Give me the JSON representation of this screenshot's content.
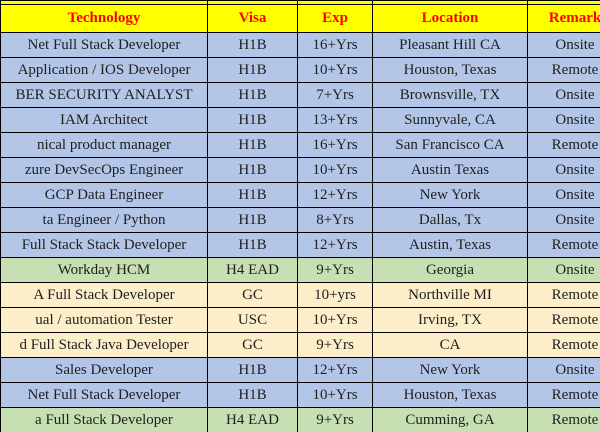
{
  "table": {
    "columns": [
      "Technology",
      "Visa",
      "Exp",
      "Location",
      "Remark"
    ],
    "rows": [
      {
        "technology": "Net Full Stack Developer",
        "visa": "H1B",
        "exp": "16+Yrs",
        "location": "Pleasant Hill CA",
        "remark": "Onsite",
        "theme": "blue"
      },
      {
        "technology": "Application / IOS Developer",
        "visa": "H1B",
        "exp": "10+Yrs",
        "location": "Houston, Texas",
        "remark": "Remote",
        "theme": "blue"
      },
      {
        "technology": "BER SECURITY ANALYST",
        "visa": "H1B",
        "exp": "7+Yrs",
        "location": "Brownsville, TX",
        "remark": "Onsite",
        "theme": "blue"
      },
      {
        "technology": "IAM Architect",
        "visa": "H1B",
        "exp": "13+Yrs",
        "location": "Sunnyvale, CA",
        "remark": "Onsite",
        "theme": "blue"
      },
      {
        "technology": "nical product manager",
        "visa": "H1B",
        "exp": "16+Yrs",
        "location": "San Francisco CA",
        "remark": "Remote",
        "theme": "blue"
      },
      {
        "technology": "zure DevSecOps Engineer",
        "visa": "H1B",
        "exp": "10+Yrs",
        "location": "Austin Texas",
        "remark": "Onsite",
        "theme": "blue"
      },
      {
        "technology": "GCP Data Engineer",
        "visa": "H1B",
        "exp": "12+Yrs",
        "location": "New York",
        "remark": "Onsite",
        "theme": "blue"
      },
      {
        "technology": "ta Engineer / Python",
        "visa": "H1B",
        "exp": "8+Yrs",
        "location": "Dallas, Tx",
        "remark": "Onsite",
        "theme": "blue"
      },
      {
        "technology": "Full Stack Stack Developer",
        "visa": "H1B",
        "exp": "12+Yrs",
        "location": "Austin, Texas",
        "remark": "Remote",
        "theme": "blue"
      },
      {
        "technology": "Workday HCM",
        "visa": "H4 EAD",
        "exp": "9+Yrs",
        "location": "Georgia",
        "remark": "Onsite",
        "theme": "green"
      },
      {
        "technology": "A Full Stack Developer",
        "visa": "GC",
        "exp": "10+yrs",
        "location": "Northville MI",
        "remark": "Remote",
        "theme": "cream"
      },
      {
        "technology": "ual / automation Tester",
        "visa": "USC",
        "exp": "10+Yrs",
        "location": "Irving, TX",
        "remark": "Remote",
        "theme": "cream"
      },
      {
        "technology": "d Full Stack Java Developer",
        "visa": "GC",
        "exp": "9+Yrs",
        "location": "CA",
        "remark": "Remote",
        "theme": "cream"
      },
      {
        "technology": "Sales Developer",
        "visa": "H1B",
        "exp": "12+Yrs",
        "location": "New York",
        "remark": "Onsite",
        "theme": "blue"
      },
      {
        "technology": "Net Full Stack Developer",
        "visa": "H1B",
        "exp": "10+Yrs",
        "location": "Houston, Texas",
        "remark": "Remote",
        "theme": "blue"
      },
      {
        "technology": "a Full Stack Developer",
        "visa": "H4 EAD",
        "exp": "9+Yrs",
        "location": "Cumming, GA",
        "remark": "Remote",
        "theme": "green"
      }
    ]
  },
  "colors": {
    "header_bg": "#FFFF00",
    "header_text": "#FF0000",
    "row_blue": "#B4C6E7",
    "row_green": "#C6E0B4",
    "row_cream": "#FBEEC9",
    "border": "#000000"
  }
}
